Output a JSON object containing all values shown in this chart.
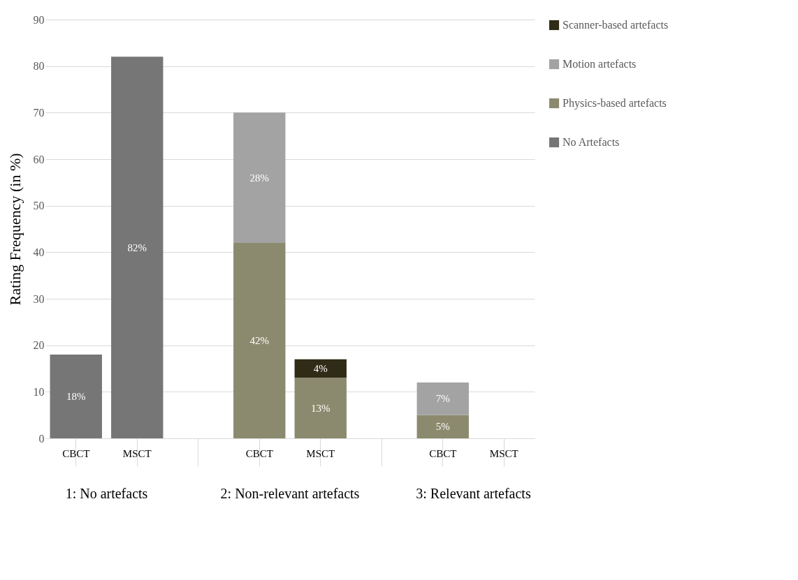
{
  "chart_data": {
    "type": "bar",
    "stacked": true,
    "ylabel": "Rating Frequency (in %)",
    "categories": [
      "CBCT",
      "MSCT",
      null,
      "CBCT",
      "MSCT",
      null,
      "CBCT",
      "MSCT"
    ],
    "series": [
      {
        "name": "No Artefacts",
        "color": "#767676",
        "values": [
          18,
          82,
          null,
          null,
          null,
          null,
          null,
          null
        ],
        "value_labels": [
          "18%",
          "82%",
          null,
          null,
          null,
          null,
          null,
          null
        ]
      },
      {
        "name": "Physics-based artefacts",
        "color": "#8c8a6e",
        "values": [
          null,
          null,
          null,
          42,
          13,
          null,
          5,
          null
        ],
        "value_labels": [
          null,
          null,
          null,
          "42%",
          "13%",
          null,
          "5%",
          null
        ]
      },
      {
        "name": "Motion artefacts",
        "color": "#a3a3a3",
        "values": [
          null,
          null,
          null,
          28,
          null,
          null,
          7,
          null
        ],
        "value_labels": [
          null,
          null,
          null,
          "28%",
          null,
          null,
          "7%",
          null
        ]
      },
      {
        "name": "Scanner-based artefacts",
        "color": "#2f2b16",
        "values": [
          null,
          null,
          null,
          null,
          4,
          null,
          null,
          null
        ],
        "value_labels": [
          null,
          null,
          null,
          null,
          "4%",
          null,
          null,
          null
        ]
      }
    ],
    "ylim": [
      0,
      90
    ],
    "yticks": [
      0,
      10,
      20,
      30,
      40,
      50,
      60,
      70,
      80,
      90
    ],
    "grid": "y",
    "legend": "right",
    "annotations": [
      "1: No artefacts",
      "2: Non-relevant artefacts",
      "3: Relevant artefacts"
    ]
  }
}
